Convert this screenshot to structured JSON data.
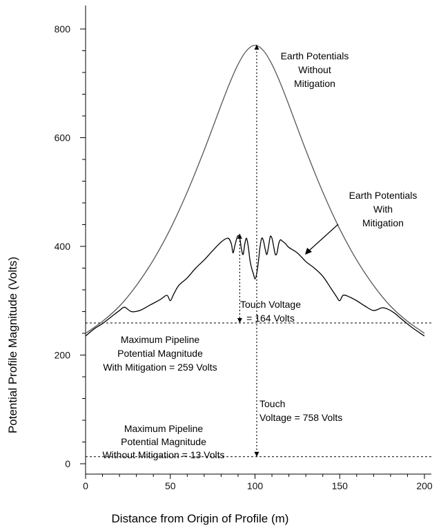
{
  "chart_data": {
    "type": "line",
    "title": "",
    "xlabel": "Distance from Origin of Profile (m)",
    "ylabel": "Potential Profile Magnitude (Volts)",
    "xlim": [
      0,
      210
    ],
    "ylim": [
      -20,
      830
    ],
    "x_ticks": [
      0,
      50,
      100,
      150,
      200
    ],
    "y_ticks": [
      0,
      200,
      400,
      600,
      800
    ],
    "series": [
      {
        "key": "without",
        "color": "#555555",
        "x": [
          0,
          10,
          20,
          30,
          40,
          50,
          60,
          70,
          80,
          85,
          90,
          95,
          100,
          105,
          110,
          115,
          120,
          130,
          140,
          150,
          160,
          170,
          180,
          190,
          200
        ],
        "y": [
          240,
          262,
          290,
          328,
          375,
          432,
          500,
          577,
          660,
          700,
          735,
          760,
          770,
          760,
          735,
          700,
          660,
          577,
          500,
          432,
          375,
          328,
          290,
          262,
          240
        ]
      },
      {
        "key": "with",
        "color": "#000000",
        "x": [
          0,
          5,
          10,
          15,
          20,
          23,
          27,
          32,
          38,
          44,
          48,
          50,
          52,
          55,
          60,
          65,
          70,
          75,
          80,
          84,
          86,
          87,
          88,
          89,
          90,
          91,
          92,
          93,
          94,
          95,
          96,
          97,
          98,
          99,
          100,
          101,
          102,
          103,
          104,
          105,
          106,
          107,
          108,
          109,
          110,
          111,
          112,
          113,
          114,
          115,
          116,
          118,
          120,
          125,
          130,
          135,
          140,
          145,
          148,
          150,
          152,
          155,
          160,
          165,
          170,
          175,
          178,
          182,
          187,
          193,
          200
        ],
        "y": [
          235,
          248,
          258,
          270,
          282,
          288,
          280,
          282,
          292,
          302,
          310,
          300,
          312,
          328,
          342,
          360,
          375,
          392,
          408,
          415,
          405,
          388,
          400,
          412,
          420,
          415,
          395,
          385,
          405,
          415,
          400,
          375,
          360,
          350,
          340,
          350,
          372,
          400,
          415,
          410,
          395,
          385,
          400,
          418,
          415,
          400,
          385,
          388,
          405,
          412,
          410,
          405,
          398,
          388,
          372,
          360,
          345,
          322,
          308,
          300,
          310,
          308,
          300,
          290,
          282,
          287,
          285,
          278,
          265,
          250,
          235
        ]
      }
    ],
    "reference_lines": [
      {
        "key": "max_with",
        "y": 259
      },
      {
        "key": "max_without",
        "y": 13
      }
    ],
    "touch_arrows": [
      {
        "key": "t164",
        "x": 91,
        "y1": 423,
        "y2": 259
      },
      {
        "key": "t758",
        "x": 101,
        "y1": 771,
        "y2": 13
      }
    ],
    "annotations": {
      "earth_without": [
        "Earth Potentials",
        "Without",
        "Mitigation"
      ],
      "earth_with": [
        "Earth Potentials",
        "With",
        "Mitigation"
      ],
      "touch_164": [
        "Touch Voltage",
        "= 164 Volts"
      ],
      "max_with": [
        "Maximum Pipeline",
        "Potential Magnitude",
        "With Mitigation = 259 Volts"
      ],
      "touch_758": [
        "Touch",
        "Voltage = 758 Volts"
      ],
      "max_without": [
        "Maximum Pipeline",
        "Potential Magnitude",
        "Without Mitigation = 13 Volts"
      ]
    }
  }
}
